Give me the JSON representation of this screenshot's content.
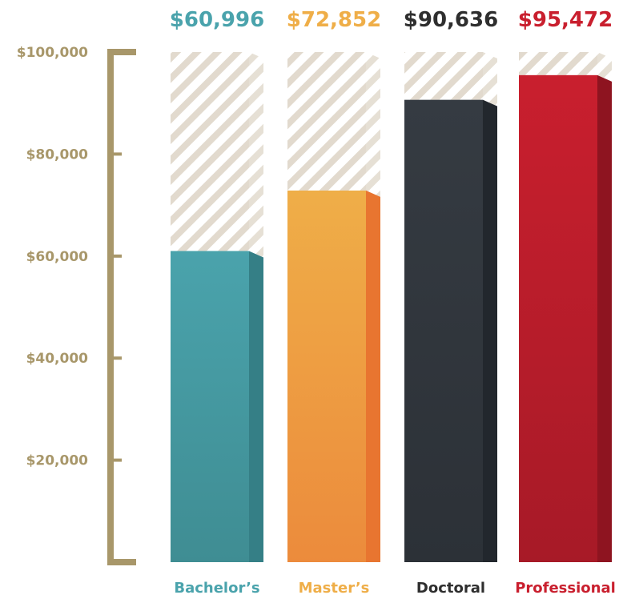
{
  "chart_data": {
    "type": "bar",
    "categories": [
      "Bachelor’s",
      "Master’s",
      "Doctoral",
      "Professional"
    ],
    "values": [
      60996,
      72852,
      90636,
      95472
    ],
    "value_labels": [
      "$60,996",
      "$72,852",
      "$90,636",
      "$95,472"
    ],
    "ylim": [
      0,
      100000
    ],
    "yticks": [
      20000,
      40000,
      60000,
      80000,
      100000
    ],
    "ytick_labels": [
      "$20,000",
      "$40,000",
      "$60,000",
      "$80,000",
      "$100,000"
    ],
    "grid": false,
    "legend": "none",
    "colors": {
      "bars": [
        "#4aa3ac",
        "#efae48",
        "#353b42",
        "#c91f2e"
      ],
      "sides": [
        "#357f86",
        "#e87530",
        "#22272d",
        "#8e1420"
      ],
      "bottoms": [
        "#3f8d93",
        "#ec8b3c",
        "#2c3137",
        "#a71a27"
      ],
      "labels": [
        "#4aa3ac",
        "#efae48",
        "#2e2e2e",
        "#c91f2e"
      ],
      "axis": "#a8976a",
      "hatch": "#e2dace"
    }
  }
}
